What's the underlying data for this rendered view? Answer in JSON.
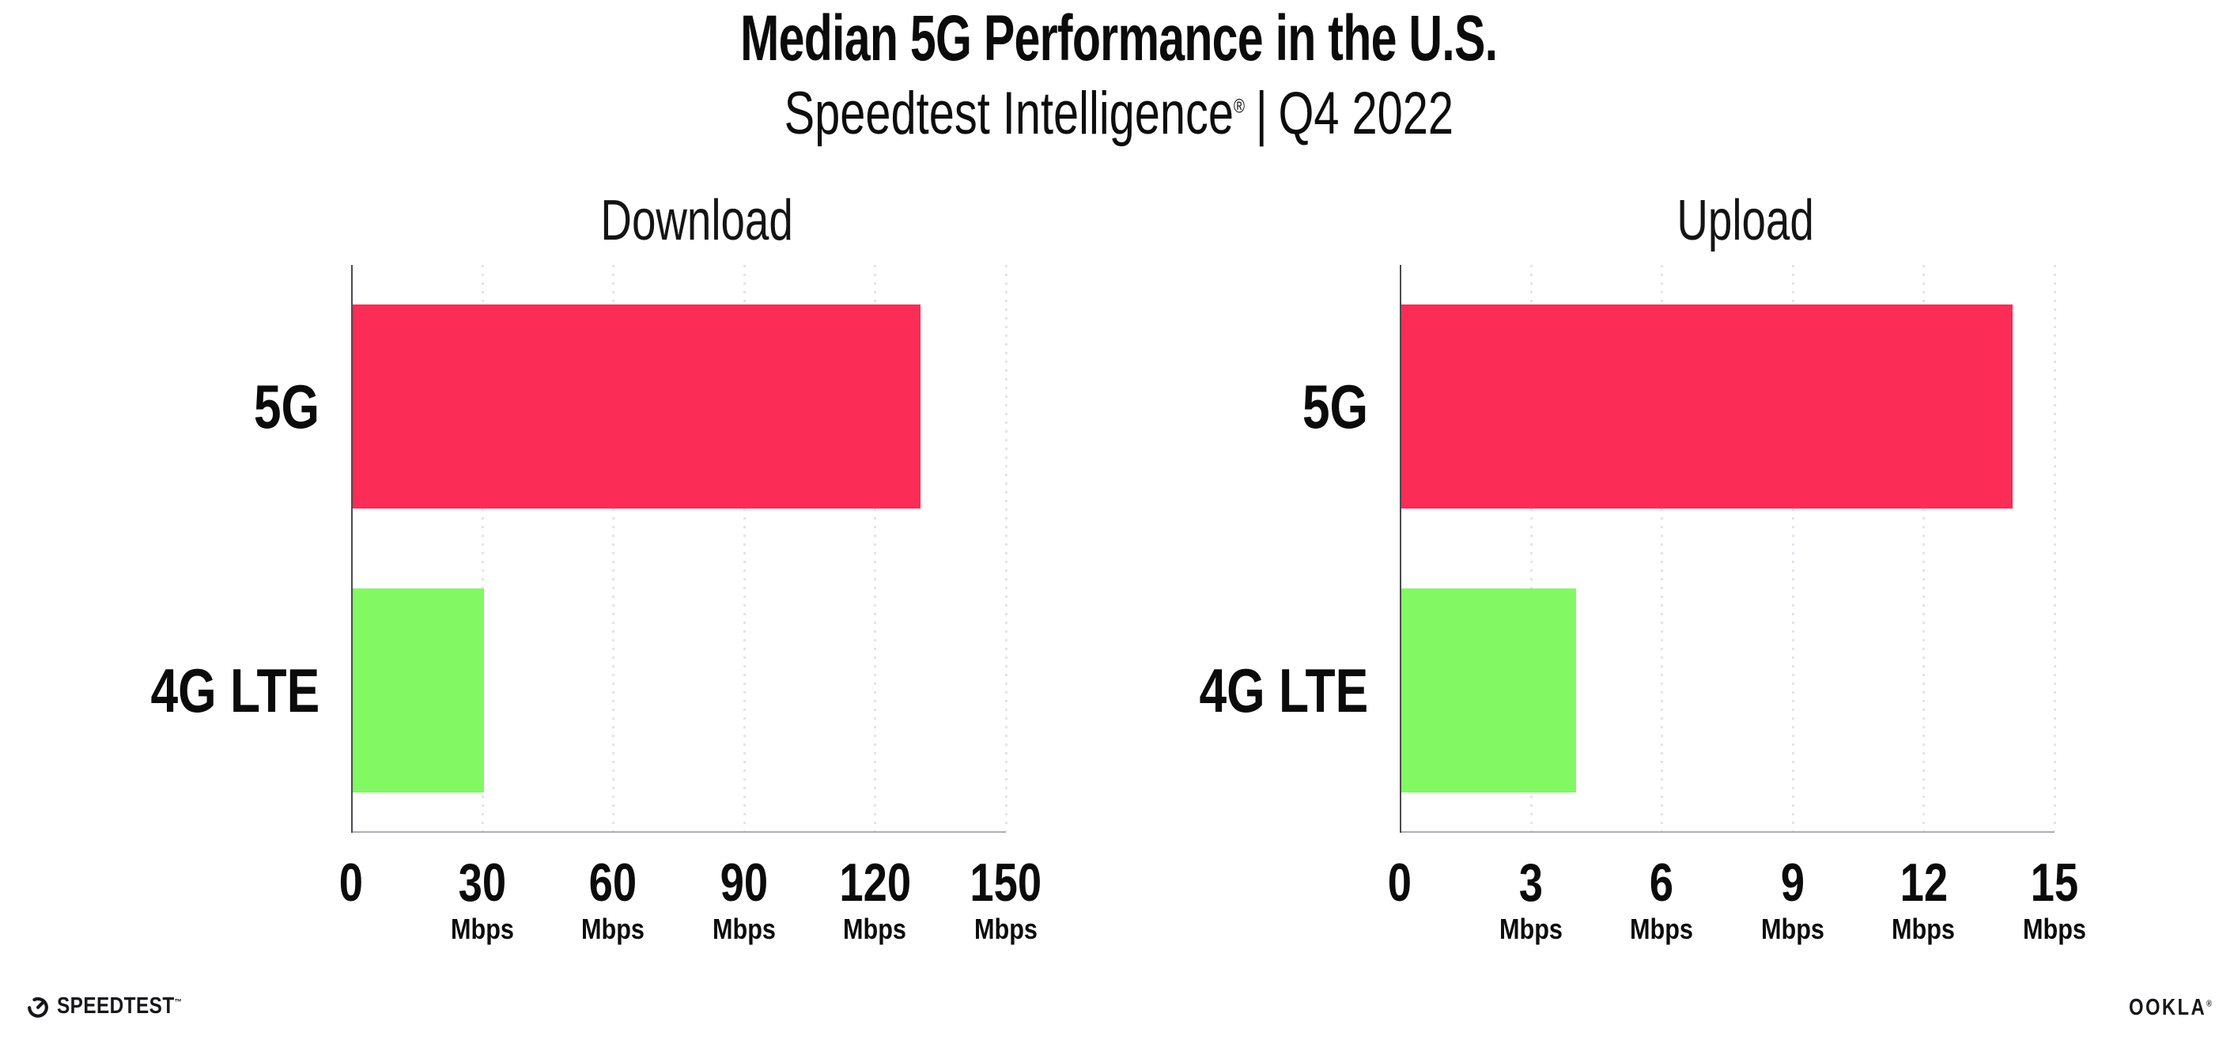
{
  "header": {
    "title": "Median 5G Performance in the U.S.",
    "subtitle_brand": "Speedtest Intelligence",
    "subtitle_mark": "®",
    "subtitle_separator": "|",
    "subtitle_period": "Q4 2022"
  },
  "colors": {
    "bar_5g": "#FB2C55",
    "bar_4g_lte": "#82F963",
    "gridline": "#E3E3EE",
    "x_axis": "#ADADB5",
    "y_axis": "#4B4B52",
    "text": "#111111",
    "background": "#FFFFFF"
  },
  "chart_data": [
    {
      "type": "bar",
      "orientation": "horizontal",
      "title": "Download",
      "categories": [
        "5G",
        "4G LTE"
      ],
      "values": [
        130,
        30
      ],
      "unit": "Mbps",
      "xlim": [
        0,
        150
      ],
      "xticks": [
        0,
        30,
        60,
        90,
        120,
        150
      ],
      "unit_shown_on_zero_tick": false,
      "grid": "dotted-vertical",
      "legend": "none",
      "series_colors": [
        "#FB2C55",
        "#82F963"
      ]
    },
    {
      "type": "bar",
      "orientation": "horizontal",
      "title": "Upload",
      "categories": [
        "5G",
        "4G LTE"
      ],
      "values": [
        14,
        4
      ],
      "unit": "Mbps",
      "xlim": [
        0,
        15
      ],
      "xticks": [
        0,
        3,
        6,
        9,
        12,
        15
      ],
      "unit_shown_on_zero_tick": false,
      "grid": "dotted-vertical",
      "legend": "none",
      "series_colors": [
        "#FB2C55",
        "#82F963"
      ]
    }
  ],
  "footer": {
    "speedtest_label": "SPEEDTEST",
    "speedtest_mark": "™",
    "speedtest_icon": "gauge-icon",
    "ookla_label": "OOKLA",
    "ookla_mark": "®"
  }
}
